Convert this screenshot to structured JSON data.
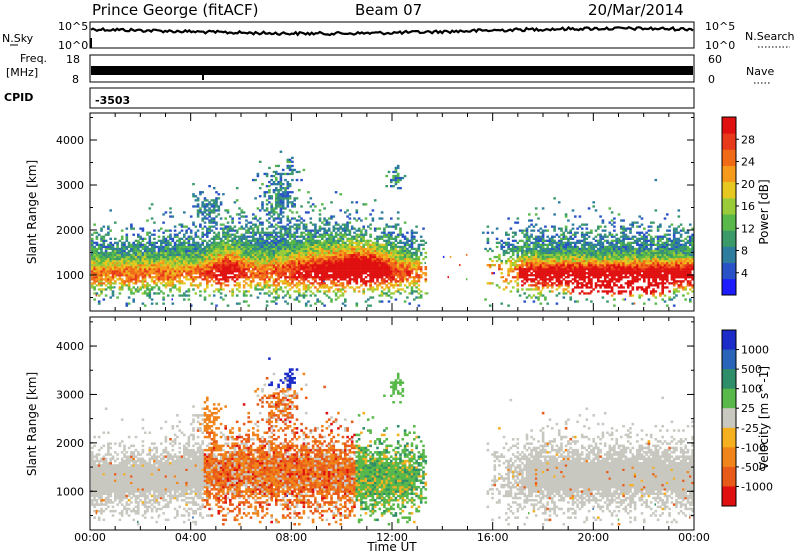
{
  "header": {
    "station": "Prince George (fitACF)",
    "beam": "Beam 07",
    "date": "20/Mar/2014"
  },
  "strip_nsky": {
    "left_label": "N.Sky",
    "left_ticks": [
      "10^5",
      "10^0"
    ],
    "right_label": "N.Search",
    "right_ticks": [
      "10^5",
      "10^0"
    ]
  },
  "strip_freq": {
    "left_label_line1": "Freq.",
    "left_label_line2": "[MHz]",
    "left_ticks": [
      "18",
      "8"
    ],
    "right_label": "Nave",
    "right_ticks": [
      "60",
      "0"
    ]
  },
  "strip_cpid": {
    "label": "CPID",
    "value": "-3503"
  },
  "time_axis": {
    "label": "Time UT",
    "ticks": [
      "00:00",
      "04:00",
      "08:00",
      "12:00",
      "16:00",
      "20:00",
      "00:00"
    ]
  },
  "chart_data": [
    {
      "type": "heatmap",
      "name": "power",
      "ylabel": "Slant Range [km]",
      "yticks": [
        "1000",
        "2000",
        "3000",
        "4000"
      ],
      "ylim": [
        200,
        4600
      ],
      "xlim": [
        0,
        24
      ],
      "colorbar": {
        "label": "Power [dB]",
        "ticks": [
          "4",
          "8",
          "12",
          "16",
          "20",
          "24",
          "28"
        ],
        "colors": [
          "#1c1cff",
          "#2a52c8",
          "#2f7d9e",
          "#3a9a6a",
          "#58b84a",
          "#9acc3a",
          "#e6c820",
          "#f59a1a",
          "#f06a18",
          "#e83a1a",
          "#e01010"
        ]
      }
    },
    {
      "type": "heatmap",
      "name": "velocity",
      "ylabel": "Slant Range [km]",
      "yticks": [
        "1000",
        "2000",
        "3000",
        "4000"
      ],
      "ylim": [
        200,
        4600
      ],
      "xlim": [
        0,
        24
      ],
      "colorbar": {
        "label": "Velocity [m s^-1]",
        "ticks": [
          "1000",
          "500",
          "100",
          "25",
          "-25",
          "-100",
          "-500",
          "-1000"
        ],
        "colors": [
          "#1c2cc8",
          "#2a64b8",
          "#2f8e6a",
          "#58b84a",
          "#c8c8c0",
          "#f5b020",
          "#f0841a",
          "#e85a1a",
          "#e01010"
        ]
      }
    }
  ]
}
